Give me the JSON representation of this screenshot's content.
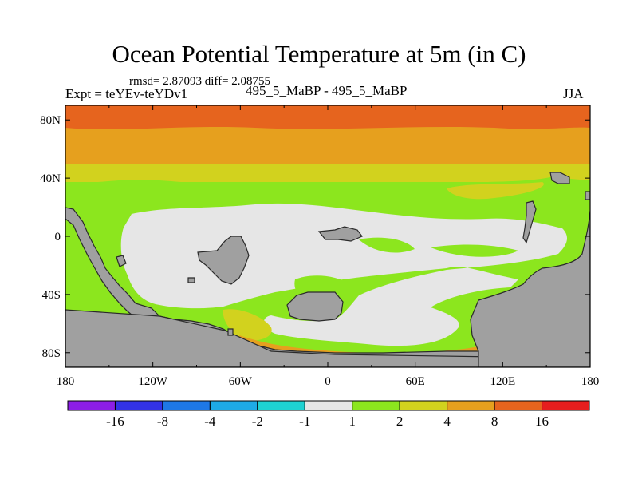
{
  "chart_data": {
    "type": "heatmap",
    "title": "Ocean Potential Temperature at 5m (in C)",
    "stats_text": "rmsd= 2.87093 diff= 2.08755",
    "experiment_label": "Expt = teYEv-teYDv1",
    "comparison_label": "495_5_MaBP - 495_5_MaBP",
    "season_label": "JJA",
    "x_axis": {
      "range": [
        -180,
        180
      ],
      "ticks": [
        {
          "value": -180,
          "label": "180"
        },
        {
          "value": -120,
          "label": "120W"
        },
        {
          "value": -60,
          "label": "60W"
        },
        {
          "value": 0,
          "label": "0"
        },
        {
          "value": 60,
          "label": "60E"
        },
        {
          "value": 120,
          "label": "120E"
        },
        {
          "value": 180,
          "label": "180"
        }
      ]
    },
    "y_axis": {
      "range": [
        -90,
        90
      ],
      "ticks": [
        {
          "value": 80,
          "label": "80N"
        },
        {
          "value": 40,
          "label": "40N"
        },
        {
          "value": 0,
          "label": "0"
        },
        {
          "value": -40,
          "label": "40S"
        },
        {
          "value": -80,
          "label": "80S"
        }
      ]
    },
    "colorbar": {
      "boundaries": [
        "-16",
        "-8",
        "-4",
        "-2",
        "-1",
        "1",
        "2",
        "4",
        "8",
        "16"
      ],
      "colors": [
        "#8c1ee6",
        "#3232e6",
        "#1e78e6",
        "#1eaae6",
        "#1ed2d2",
        "#e6e6e6",
        "#8ce61e",
        "#d2d21e",
        "#e6a01e",
        "#e6641e",
        "#e61e1e"
      ]
    },
    "field_summary": [
      {
        "region": "60N-90N",
        "band": "8 to 16"
      },
      {
        "region": "45N-60N",
        "band": "4 to 8"
      },
      {
        "region": "38N-45N",
        "band": "2 to 4"
      },
      {
        "region": "20N-38N",
        "band": "1 to 2"
      },
      {
        "region": "tropics and subtropics",
        "band": "-1 to 1"
      },
      {
        "region": "Southern Ocean 30S-60S",
        "band": "1 to 2"
      },
      {
        "region": "Antarctic margin",
        "band": "4 to 8"
      }
    ],
    "land_color": "#a0a0a0"
  }
}
